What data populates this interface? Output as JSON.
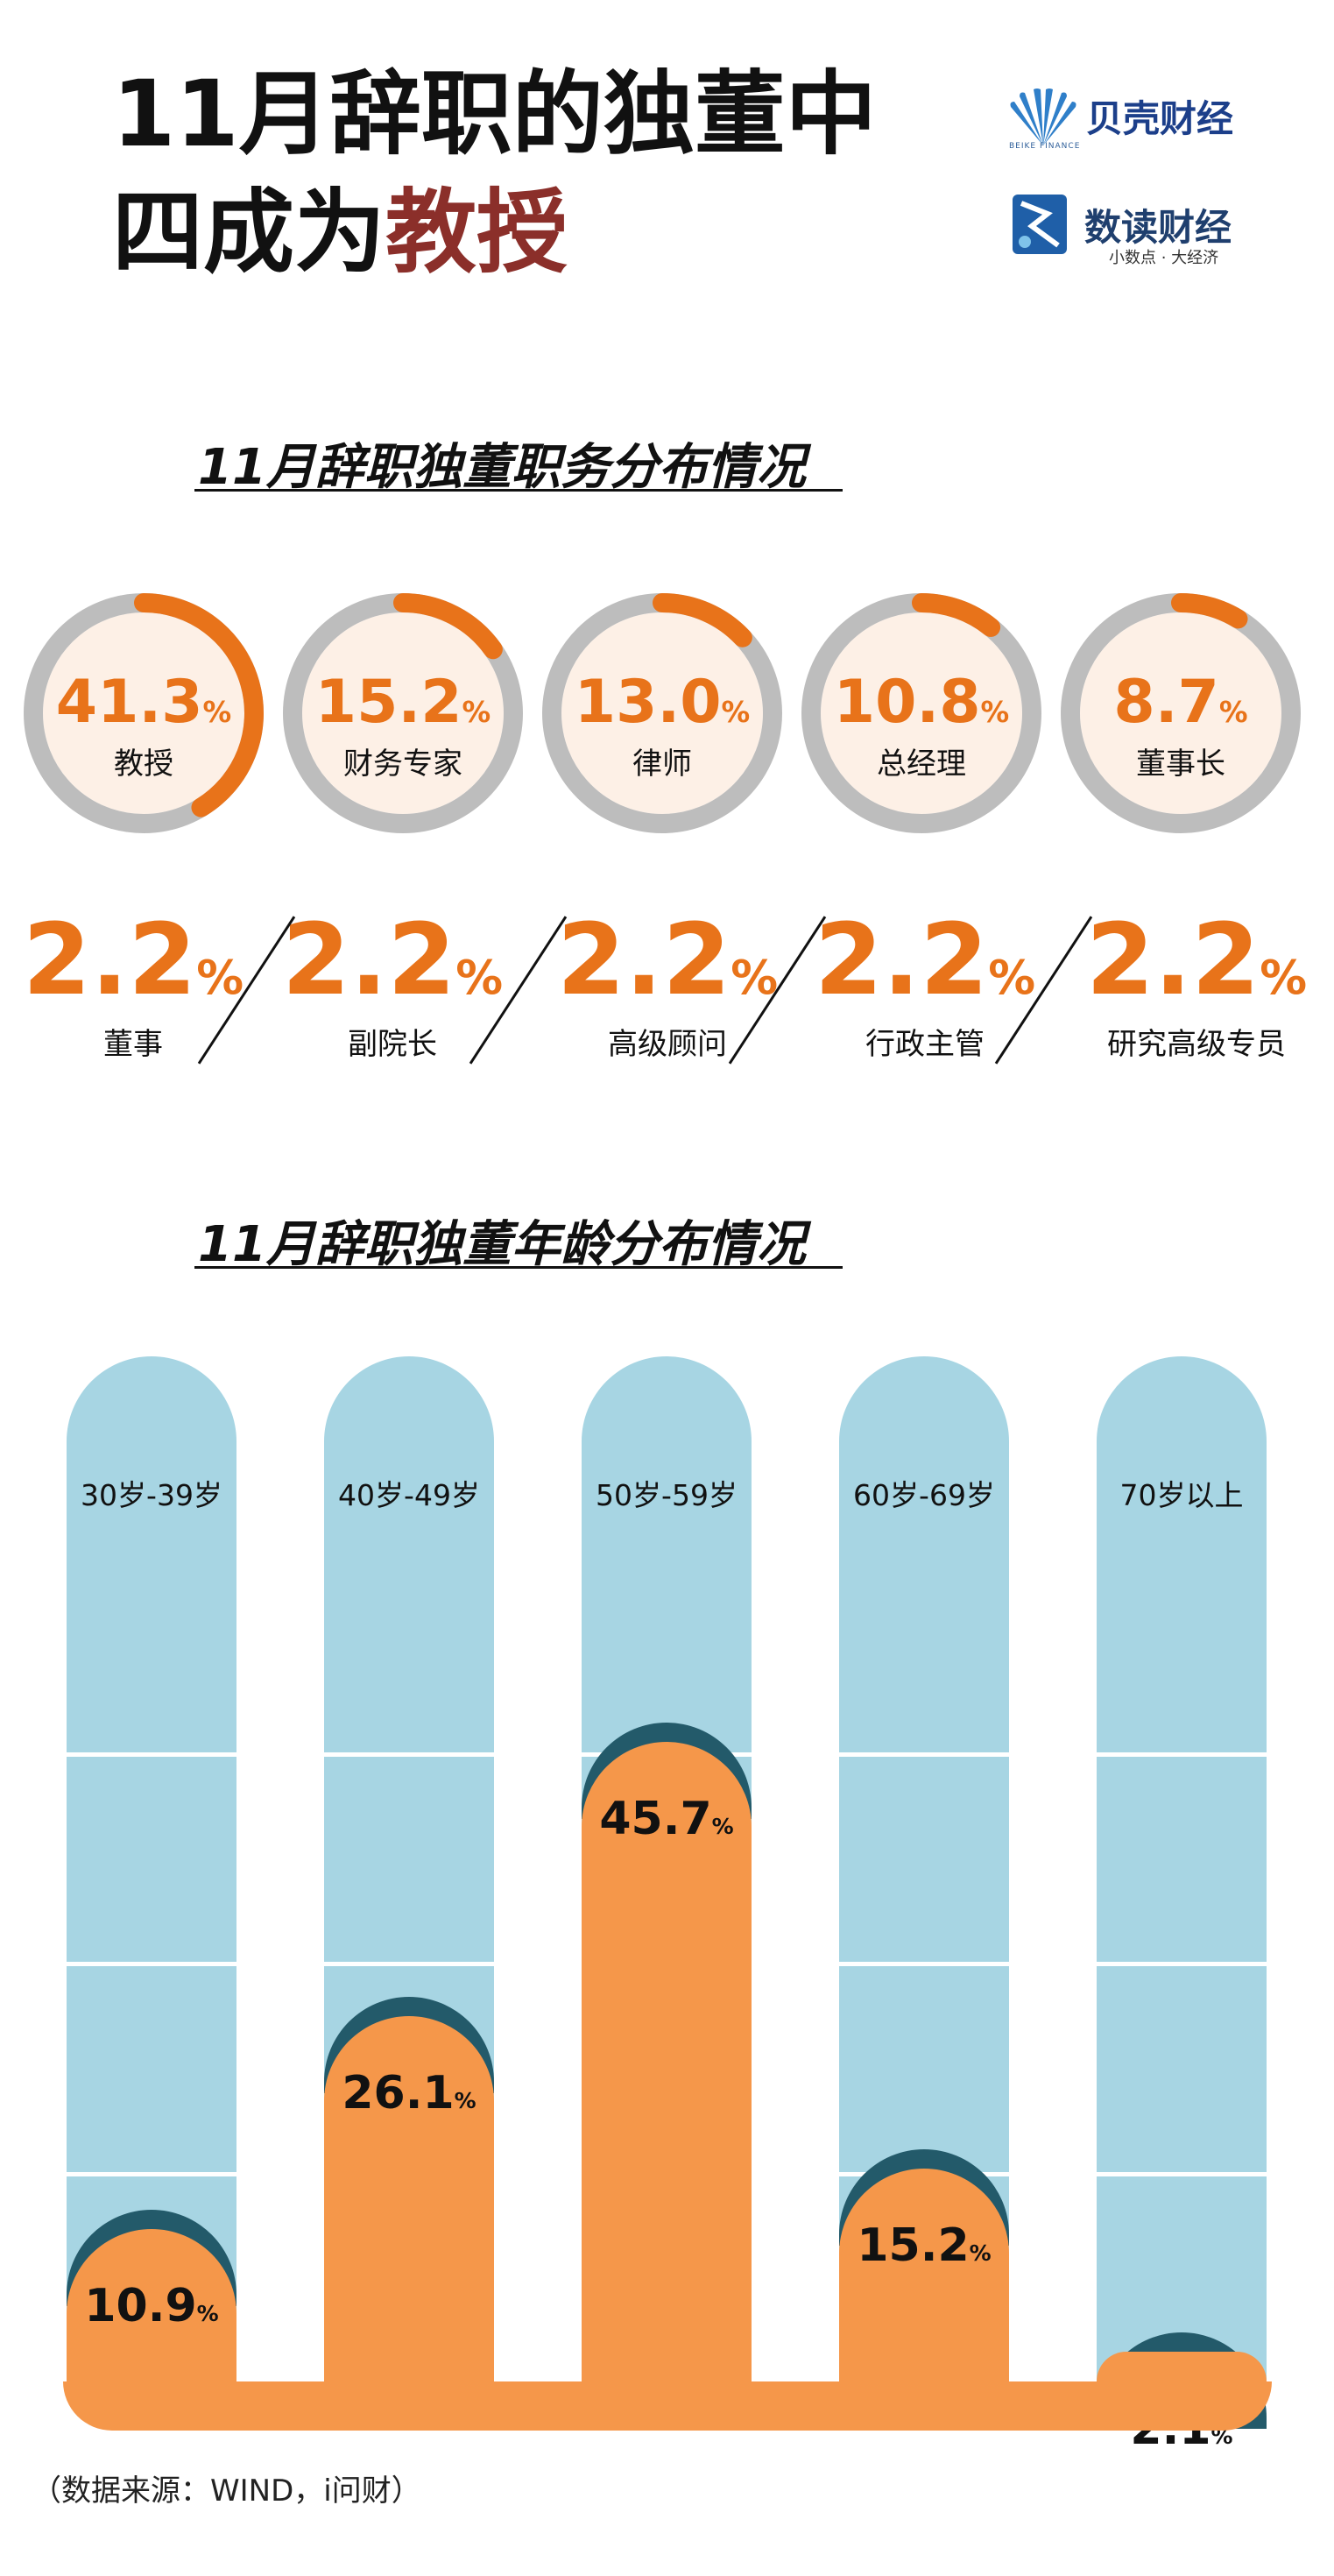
{
  "header": {
    "title_line1": "11月辞职的独董中",
    "title_line2_prefix": "四成为",
    "title_line2_highlight": "教授"
  },
  "logos": {
    "beike": "贝壳财经",
    "beike_sub": "BEIKE FINANCE",
    "shudu": "数读财经",
    "shudu_sub": "小数点 · 大经济"
  },
  "colors": {
    "orange": "#e8731a",
    "bar_orange": "#f5974a",
    "ring_gray": "#bdbdbd",
    "ring_fill": "#fdf0e6",
    "column_blue": "#a7d5e3",
    "cap_teal": "#235a6a",
    "title_highlight": "#8b2f2a"
  },
  "chart_data": [
    {
      "type": "pie",
      "title": "11月辞职独董职务分布情况",
      "categories": [
        "教授",
        "财务专家",
        "律师",
        "总经理",
        "董事长",
        "董事",
        "副院长",
        "高级顾问",
        "行政主管",
        "研究高级专员"
      ],
      "values": [
        41.3,
        15.2,
        13.0,
        10.8,
        8.7,
        2.2,
        2.2,
        2.2,
        2.2,
        2.2
      ],
      "display_values": [
        "41.3",
        "15.2",
        "13.0",
        "10.8",
        "8.7",
        "2.2",
        "2.2",
        "2.2",
        "2.2",
        "2.2"
      ],
      "unit": "%"
    },
    {
      "type": "bar",
      "title": "11月辞职独董年龄分布情况",
      "categories": [
        "30岁-39岁",
        "40岁-49岁",
        "50岁-59岁",
        "60岁-69岁",
        "70岁以上"
      ],
      "values": [
        10.9,
        26.1,
        45.7,
        15.2,
        2.1
      ],
      "display_values": [
        "10.9",
        "26.1",
        "45.7",
        "15.2",
        "2.1"
      ],
      "unit": "%",
      "ylim": [
        0,
        55
      ],
      "gridlines": [
        15,
        30,
        45
      ]
    }
  ],
  "source": "（数据来源：WIND，i问财）"
}
